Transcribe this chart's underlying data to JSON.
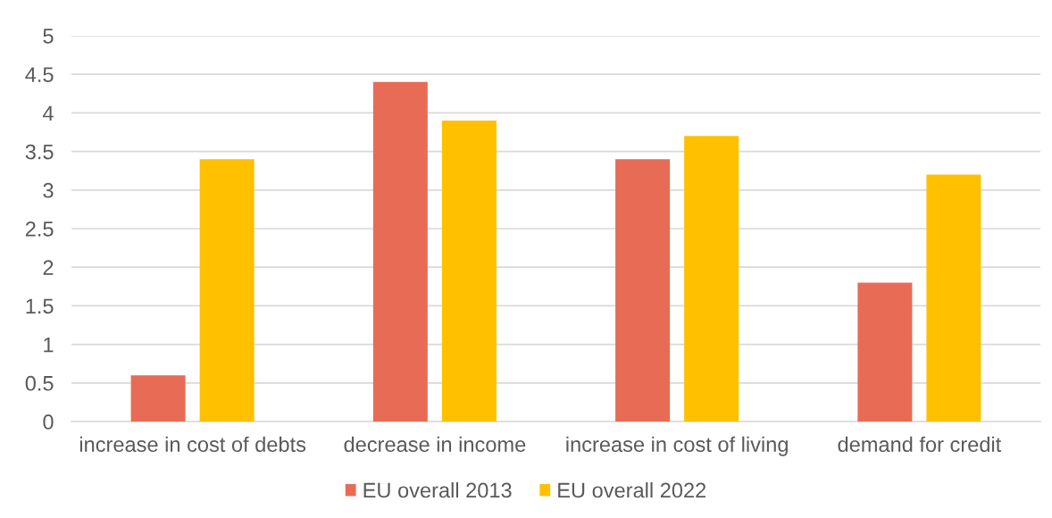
{
  "chart_data": {
    "type": "bar",
    "categories": [
      "increase in cost of debts",
      "decrease in income",
      "increase in cost of living",
      "demand for credit"
    ],
    "series": [
      {
        "name": "EU overall 2013",
        "color": "#e86c55",
        "values": [
          0.6,
          4.4,
          3.4,
          1.8
        ]
      },
      {
        "name": "EU overall 2022",
        "color": "#ffc000",
        "values": [
          3.4,
          3.9,
          3.7,
          3.2
        ]
      }
    ],
    "ylim": [
      0,
      5
    ],
    "yticks": [
      0,
      0.5,
      1,
      1.5,
      2,
      2.5,
      3,
      3.5,
      4,
      4.5,
      5
    ],
    "grid": "y",
    "legend": "bottom"
  }
}
